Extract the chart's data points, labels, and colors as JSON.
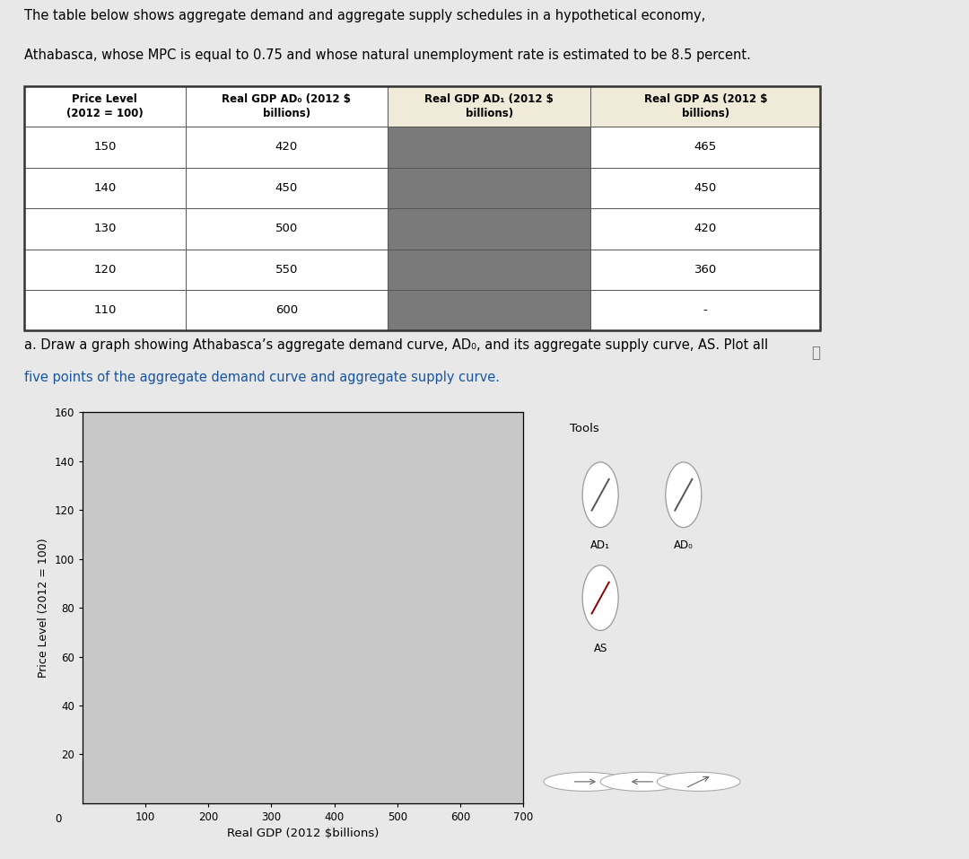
{
  "page_bg": "#e8e8e8",
  "header_text_line1": "The table below shows aggregate demand and aggregate supply schedules in a hypothetical economy,",
  "header_text_line2": "Athabasca, whose MPC is equal to 0.75 and whose natural unemployment rate is estimated to be 8.5 percent.",
  "table": {
    "col_headers_line1": [
      "Price Level",
      "Real GDP AD₀ (2012 $",
      "Real GDP AD₁ (2012 $",
      "Real GDP AS (2012 $"
    ],
    "col_headers_line2": [
      "(2012 = 100)",
      "billions)",
      "billions)",
      "billions)"
    ],
    "rows": [
      [
        "150",
        "420",
        "",
        "465"
      ],
      [
        "140",
        "450",
        "",
        "450"
      ],
      [
        "130",
        "500",
        "",
        "420"
      ],
      [
        "120",
        "550",
        "",
        "360"
      ],
      [
        "110",
        "600",
        "",
        "-"
      ]
    ]
  },
  "instruction_line1": "a. Draw a graph showing Athabasca’s aggregate demand curve, AD₀, and its aggregate supply curve, AS. Plot all",
  "instruction_line2": "five points of the aggregate demand curve and aggregate supply curve.",
  "graph": {
    "plot_area_color": "#c8c8c8",
    "xlim": [
      0,
      700
    ],
    "ylim": [
      0,
      160
    ],
    "xticks": [
      100,
      200,
      300,
      400,
      500,
      600,
      700
    ],
    "yticks": [
      20,
      40,
      60,
      80,
      100,
      120,
      140,
      160
    ],
    "xlabel": "Real GDP (2012 $billions)",
    "ylabel": "Price Level (2012 = 100)"
  },
  "tools_panel": {
    "bg_color": "#d4d4d4",
    "title": "Tools",
    "btn1_label": "AD₁",
    "btn2_label": "AD₀",
    "btn3_label": "AS",
    "slash_color_ad": "#555555",
    "slash_color_as": "#8B0000"
  },
  "bottom_bar_bg": "#cccccc",
  "info_color": "#555555"
}
